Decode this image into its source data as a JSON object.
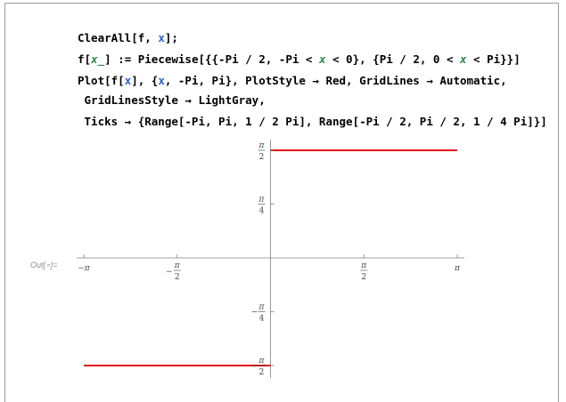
{
  "cell": {
    "input_lines": [
      "ClearAll[f, x];",
      "f[x_] := Piecewise[{{-Pi / 2, -Pi < x < 0}, {Pi / 2, 0 < x < Pi}}]",
      "Plot[f[x], {x, -Pi, Pi}, PlotStyle → Red, GridLines → Automatic,",
      " GridLinesStyle → LightGray,",
      " Ticks → {Range[-Pi, Pi, 1 / 2 Pi], Range[-Pi / 2, Pi / 2, 1 / 4 Pi]}]"
    ],
    "output_label": "Out[∘]="
  },
  "colors": {
    "plot_line": "#e0150e",
    "axis": "#7f7f7f",
    "keyword_blue": "#2e5fbf",
    "pattern_green": "#2f8a4f"
  },
  "chart_data": {
    "type": "line",
    "series": [
      {
        "x": [
          -3.14159,
          0
        ],
        "y": [
          -1.5708,
          -1.5708
        ]
      },
      {
        "x": [
          0,
          3.14159
        ],
        "y": [
          1.5708,
          1.5708
        ]
      }
    ],
    "xlim": [
      -3.14159,
      3.14159
    ],
    "ylim": [
      -1.5708,
      1.5708
    ],
    "x_ticks": [
      {
        "value": -3.14159,
        "label": "−π",
        "frac": false
      },
      {
        "value": -1.5708,
        "label": "π",
        "sign": "−",
        "frac": true
      },
      {
        "value": 1.5708,
        "label": "π",
        "sign": "",
        "frac": true
      },
      {
        "value": 3.14159,
        "label": "π",
        "frac": false
      }
    ],
    "y_ticks": [
      {
        "value": 1.5708,
        "num": "π",
        "den": "2",
        "sign": ""
      },
      {
        "value": 0.7854,
        "num": "π",
        "den": "4",
        "sign": ""
      },
      {
        "value": -0.7854,
        "num": "π",
        "den": "4",
        "sign": "−"
      },
      {
        "value": -1.5708,
        "num": "π",
        "den": "2",
        "sign": "−"
      }
    ],
    "grid": false
  }
}
